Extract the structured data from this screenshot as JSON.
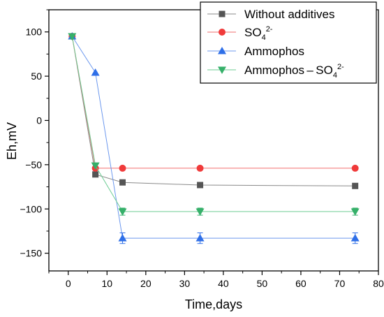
{
  "chart_data": {
    "type": "line",
    "title": "",
    "xlabel": "Time,days",
    "ylabel": "Eh,mV",
    "xlim": [
      -5,
      80
    ],
    "ylim": [
      -170,
      125
    ],
    "xticks": [
      0,
      10,
      20,
      30,
      40,
      50,
      60,
      70,
      80
    ],
    "yticks": [
      -150,
      -100,
      -50,
      0,
      50,
      100
    ],
    "x_tick_labels": [
      "0",
      "10",
      "20",
      "30",
      "40",
      "50",
      "60",
      "70",
      "80"
    ],
    "y_tick_labels": [
      "−150",
      "−100",
      "−50",
      "0",
      "50",
      "100"
    ],
    "legend_position": "top-right",
    "grid": false,
    "series": [
      {
        "name": "Without additives",
        "legend_parts": [
          {
            "text": "Without additives",
            "style": "normal"
          }
        ],
        "color": "#555555",
        "line_color": "#8a8a8a",
        "marker": "square",
        "x": [
          1,
          7,
          14,
          34,
          74
        ],
        "y": [
          95,
          -61,
          -70,
          -73,
          -74
        ],
        "err": [
          3,
          0,
          0,
          0,
          0
        ]
      },
      {
        "name": "SO42-",
        "legend_parts": [
          {
            "text": "SO",
            "style": "normal"
          },
          {
            "text": "4",
            "style": "sub"
          },
          {
            "text": "2-",
            "style": "sup"
          }
        ],
        "color": "#f03a3a",
        "line_color": "#f26d6d",
        "marker": "circle",
        "x": [
          1,
          7,
          14,
          34,
          74
        ],
        "y": [
          95,
          -54,
          -54,
          -54,
          -54
        ],
        "err": [
          3,
          0,
          0,
          0,
          0
        ]
      },
      {
        "name": "Ammophos",
        "legend_parts": [
          {
            "text": "Ammophos",
            "style": "normal"
          }
        ],
        "color": "#2f6fe8",
        "line_color": "#6c98ee",
        "marker": "triangle-up",
        "x": [
          1,
          7,
          14,
          34,
          74
        ],
        "y": [
          95,
          54,
          -133,
          -133,
          -133
        ],
        "err": [
          3,
          0,
          6,
          6,
          6
        ]
      },
      {
        "name": "Ammophos – SO42-",
        "legend_parts": [
          {
            "text": "Ammophos – SO",
            "style": "normal"
          },
          {
            "text": "4",
            "style": "sub"
          },
          {
            "text": "2-",
            "style": "sup"
          }
        ],
        "color": "#36b06a",
        "line_color": "#6ccc93",
        "marker": "triangle-down",
        "x": [
          1,
          7,
          14,
          34,
          74
        ],
        "y": [
          95,
          -51,
          -103,
          -103,
          -103
        ],
        "err": [
          3,
          0,
          4,
          4,
          4
        ]
      }
    ]
  }
}
